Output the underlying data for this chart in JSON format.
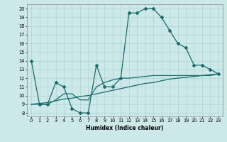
{
  "xlabel": "Humidex (Indice chaleur)",
  "bg_color": "#cce8e8",
  "line_color": "#1a6b6b",
  "grid_color": "#aad4d4",
  "xlim": [
    -0.5,
    23.5
  ],
  "ylim": [
    7.6,
    20.5
  ],
  "yticks": [
    8,
    9,
    10,
    11,
    12,
    13,
    14,
    15,
    16,
    17,
    18,
    19,
    20
  ],
  "xticks": [
    0,
    1,
    2,
    3,
    4,
    5,
    6,
    7,
    8,
    9,
    10,
    11,
    12,
    13,
    14,
    15,
    16,
    17,
    18,
    19,
    20,
    21,
    22,
    23
  ],
  "curve1_x": [
    0,
    1,
    2,
    3,
    4,
    5,
    6,
    7,
    8,
    9,
    10,
    11,
    12,
    13,
    14,
    15,
    16,
    17,
    18,
    19,
    20,
    21,
    22,
    23
  ],
  "curve1_y": [
    14,
    9,
    9,
    11.5,
    11,
    8.5,
    8,
    8,
    13.5,
    11,
    11,
    12,
    19.5,
    19.5,
    20,
    20,
    19,
    17.5,
    16,
    15.5,
    13.5,
    13.5,
    13,
    12.5
  ],
  "curve2_x": [
    0,
    1,
    2,
    3,
    4,
    5,
    6,
    7,
    8,
    9,
    10,
    11,
    12,
    13,
    14,
    15,
    16,
    17,
    18,
    19,
    20,
    21,
    22,
    23
  ],
  "curve2_y": [
    9,
    9.1,
    9.2,
    9.4,
    9.6,
    9.7,
    9.9,
    10.0,
    10.2,
    10.4,
    10.6,
    10.8,
    11.0,
    11.2,
    11.4,
    11.5,
    11.7,
    11.9,
    12.0,
    12.1,
    12.2,
    12.3,
    12.4,
    12.5
  ],
  "curve3_x": [
    0,
    1,
    2,
    3,
    4,
    5,
    6,
    7,
    8,
    9,
    10,
    11,
    12,
    13,
    14,
    15,
    16,
    17,
    18,
    19,
    20,
    21,
    22,
    23
  ],
  "curve3_y": [
    9,
    9.0,
    9.0,
    9.5,
    10.2,
    10.2,
    9.5,
    9.5,
    11,
    11.5,
    11.8,
    12.0,
    12.0,
    12.1,
    12.2,
    12.3,
    12.3,
    12.3,
    12.3,
    12.3,
    12.3,
    12.3,
    12.3,
    12.5
  ]
}
